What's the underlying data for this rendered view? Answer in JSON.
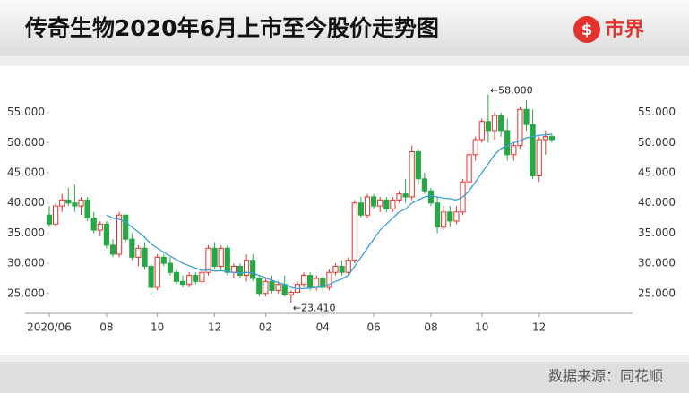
{
  "header": {
    "title": "传奇生物2020年6月上市至今股价走势图",
    "logo": "市界"
  },
  "footer": {
    "source": "数据来源：同花顺"
  },
  "chart_data": {
    "type": "candlestick",
    "categories": [
      "2020/06",
      null,
      null,
      null,
      null,
      null,
      null,
      null,
      null,
      "08",
      null,
      null,
      null,
      null,
      null,
      null,
      null,
      "10",
      null,
      null,
      null,
      null,
      null,
      null,
      null,
      null,
      "12",
      null,
      null,
      null,
      null,
      null,
      null,
      null,
      "02",
      null,
      null,
      null,
      null,
      null,
      null,
      null,
      null,
      "04",
      null,
      null,
      null,
      null,
      null,
      null,
      null,
      "06",
      null,
      null,
      null,
      null,
      null,
      null,
      null,
      null,
      "08",
      null,
      null,
      null,
      null,
      null,
      null,
      null,
      "10",
      null,
      null,
      null,
      null,
      null,
      null,
      null,
      null,
      "12",
      null,
      null
    ],
    "open": [
      38,
      36.5,
      39.5,
      40.5,
      40,
      39.5,
      40.5,
      37.5,
      35.5,
      36.5,
      33,
      31.5,
      38,
      34,
      31,
      32.5,
      29.5,
      26,
      31,
      30,
      28.5,
      27,
      26.5,
      28,
      27,
      28.5,
      32.5,
      29.5,
      32.5,
      28.5,
      29.5,
      28,
      30.5,
      27.5,
      25,
      27,
      25.5,
      26.5,
      24.8,
      25.2,
      26.5,
      28,
      26,
      27.5,
      26,
      28.5,
      29.5,
      28.5,
      30.5,
      40,
      38,
      41,
      39.5,
      40.5,
      39,
      40.5,
      41.5,
      41,
      48.5,
      44,
      42,
      40,
      36,
      38.5,
      37,
      38.5,
      43.5,
      48,
      50.5,
      53.5,
      52,
      54.5,
      52,
      48,
      49.5,
      55.5,
      53,
      44.5,
      50.5,
      51
    ],
    "high": [
      39.5,
      40,
      41.5,
      42.5,
      43,
      41,
      41,
      38.5,
      37,
      37,
      34,
      38.5,
      38,
      35,
      33,
      33.5,
      30,
      31.5,
      31.5,
      31,
      29,
      28,
      28.5,
      28.5,
      29,
      33,
      33.5,
      33,
      33,
      30,
      30,
      31.5,
      31.5,
      28,
      27.5,
      28,
      27,
      28,
      25.5,
      27,
      28.5,
      28.5,
      28,
      28,
      29,
      30,
      30.5,
      31,
      40.5,
      41,
      41.5,
      41.5,
      41,
      41,
      41,
      42,
      44,
      49.5,
      49,
      45,
      42.5,
      41,
      39.5,
      39.5,
      39.5,
      44,
      48.5,
      51,
      54,
      58,
      55,
      55,
      54,
      50,
      56,
      57,
      55.5,
      51,
      52,
      51.5
    ],
    "low": [
      36,
      36,
      38.5,
      39.5,
      38.5,
      38,
      37,
      35,
      34.5,
      32.5,
      31,
      31,
      33.5,
      30.5,
      29.5,
      29,
      24.8,
      25.5,
      29.5,
      28,
      26.5,
      26,
      26,
      26.5,
      26.5,
      28,
      29,
      29,
      28,
      27.5,
      27.5,
      27,
      27,
      24.5,
      24.5,
      25,
      25,
      24.5,
      23.41,
      25,
      26,
      25.5,
      25.5,
      25.5,
      25.5,
      28,
      28,
      28,
      30,
      37.5,
      37.5,
      39,
      38.5,
      38.5,
      38.5,
      40,
      40,
      40.5,
      43,
      41.5,
      39.5,
      35,
      35.5,
      36,
      36.5,
      38,
      43,
      47,
      50,
      50,
      50.5,
      51,
      47,
      47,
      49,
      52,
      44,
      43.5,
      48,
      50
    ],
    "close": [
      36.5,
      39.5,
      40.5,
      40,
      39.5,
      40.5,
      37.5,
      35.5,
      36.5,
      33,
      31.5,
      38,
      34,
      31,
      32.5,
      29.5,
      26,
      31,
      30,
      28.5,
      27,
      26.5,
      28,
      27,
      28.5,
      32.5,
      29.5,
      32.5,
      28.5,
      29.5,
      28,
      30.5,
      27.5,
      25,
      27,
      25.5,
      26.5,
      24.8,
      25.2,
      26.5,
      28,
      26,
      27.5,
      26,
      28.5,
      29.5,
      28.5,
      30.5,
      40,
      38,
      41,
      39.5,
      40.5,
      39,
      40.5,
      41.5,
      41,
      48.5,
      44,
      42,
      40,
      36,
      38.5,
      37,
      38.5,
      43.5,
      48,
      50.5,
      53.5,
      52,
      54.5,
      52,
      48,
      49.5,
      55.5,
      53,
      44.5,
      50.5,
      51,
      50.5
    ],
    "ma": {
      "color": "#3a9fd6",
      "values": [
        null,
        null,
        null,
        null,
        null,
        null,
        null,
        null,
        null,
        38,
        37.5,
        37.3,
        36.8,
        36,
        35.2,
        34.3,
        33.2,
        32.5,
        31.8,
        31.2,
        30.6,
        30,
        29.6,
        29.2,
        28.8,
        28.9,
        28.7,
        28.8,
        28.6,
        28.5,
        28.4,
        28.5,
        28.4,
        28,
        27.6,
        27.2,
        26.8,
        26.5,
        26,
        25.8,
        25.8,
        25.9,
        26,
        26.2,
        26.5,
        27,
        27.4,
        28,
        29.5,
        31,
        32.5,
        34,
        35.5,
        36.5,
        37.5,
        38.5,
        39,
        40,
        40.5,
        41,
        41.2,
        41,
        40.8,
        40.7,
        40.5,
        41,
        42,
        43.5,
        45,
        46.5,
        48,
        49,
        49.5,
        50,
        50.3,
        50.8,
        51,
        51.2,
        51.3,
        51.4
      ]
    },
    "up_color": "#e2332f",
    "down_color": "#25a845",
    "ylim": [
      22,
      60
    ],
    "yticks": [
      {
        "value": 25,
        "label": "25.000"
      },
      {
        "value": 30,
        "label": "30.000"
      },
      {
        "value": 35,
        "label": "35.000"
      },
      {
        "value": 40,
        "label": "40.000"
      },
      {
        "value": 45,
        "label": "45.000"
      },
      {
        "value": 50,
        "label": "50.000"
      },
      {
        "value": 55,
        "label": "55.000"
      }
    ],
    "annotations": [
      {
        "label": "←58.000",
        "value": 58,
        "of": "high"
      },
      {
        "label": "←23.410",
        "value": 23.41,
        "of": "low"
      }
    ]
  }
}
